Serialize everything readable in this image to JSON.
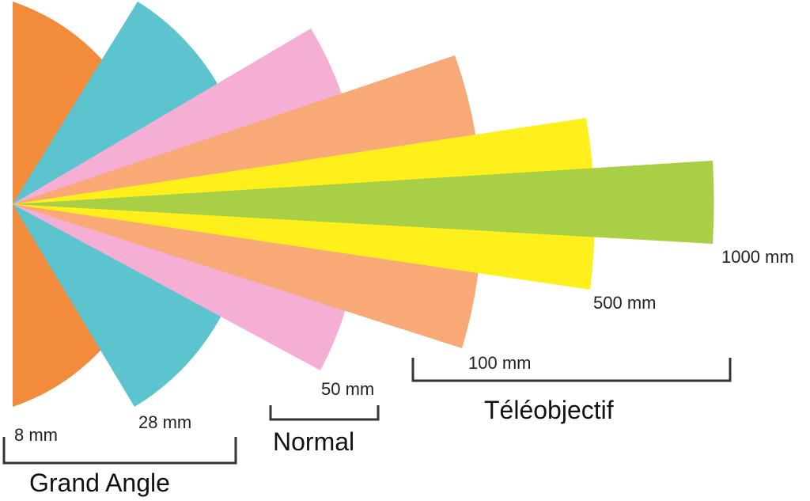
{
  "lenses": [
    {
      "id": "8mm",
      "label": "8 mm",
      "color": "#F28C3A"
    },
    {
      "id": "28mm",
      "label": "28 mm",
      "color": "#5BC4CF"
    },
    {
      "id": "50mm",
      "label": "50 mm",
      "color": "#F5AED4"
    },
    {
      "id": "100mm",
      "label": "100 mm",
      "color": "#F8A975"
    },
    {
      "id": "500mm",
      "label": "500 mm",
      "color": "#FFF01C"
    },
    {
      "id": "1000mm",
      "label": "1000 mm",
      "color": "#A8CF45"
    }
  ],
  "groups": {
    "grand_angle": "Grand Angle",
    "normal": "Normal",
    "teleobjectif": "Téléobjectif"
  }
}
